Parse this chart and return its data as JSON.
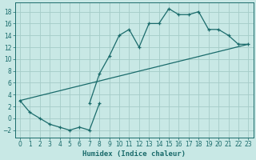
{
  "xlabel": "Humidex (Indice chaleur)",
  "bg_color": "#c8e8e5",
  "grid_color": "#a5ccc8",
  "line_color": "#1a6b6b",
  "xlim": [
    -0.5,
    23.5
  ],
  "ylim": [
    -3.2,
    19.5
  ],
  "xticks": [
    0,
    1,
    2,
    3,
    4,
    5,
    6,
    7,
    8,
    9,
    10,
    11,
    12,
    13,
    14,
    15,
    16,
    17,
    18,
    19,
    20,
    21,
    22,
    23
  ],
  "yticks": [
    -2,
    0,
    2,
    4,
    6,
    8,
    10,
    12,
    14,
    16,
    18
  ],
  "s1_x": [
    0,
    1,
    2,
    3,
    4,
    5,
    6,
    7,
    8
  ],
  "s1_y": [
    3,
    1,
    0,
    -1,
    -1.5,
    -2,
    -1.5,
    -2,
    2.5
  ],
  "s2_x": [
    7,
    8,
    9,
    10,
    11,
    12,
    13,
    14,
    15,
    16,
    17,
    18,
    19,
    20,
    21,
    22,
    23
  ],
  "s2_y": [
    2.5,
    7.5,
    10.5,
    14,
    15,
    12,
    16,
    16,
    18.5,
    17.5,
    17.5,
    18,
    15,
    15,
    14,
    12.5,
    12.5
  ],
  "s3_x": [
    0,
    1,
    2,
    3,
    4,
    5,
    6,
    7,
    8,
    9,
    10,
    11,
    12,
    13,
    14,
    15,
    16,
    17,
    18,
    19,
    20,
    21,
    22,
    23
  ],
  "s3_y": [
    3.0,
    3.41,
    3.83,
    4.24,
    4.65,
    5.07,
    5.48,
    5.89,
    6.3,
    6.72,
    7.13,
    7.54,
    7.96,
    8.37,
    8.78,
    9.2,
    9.61,
    10.02,
    10.43,
    10.85,
    11.26,
    11.67,
    12.09,
    12.5
  ]
}
